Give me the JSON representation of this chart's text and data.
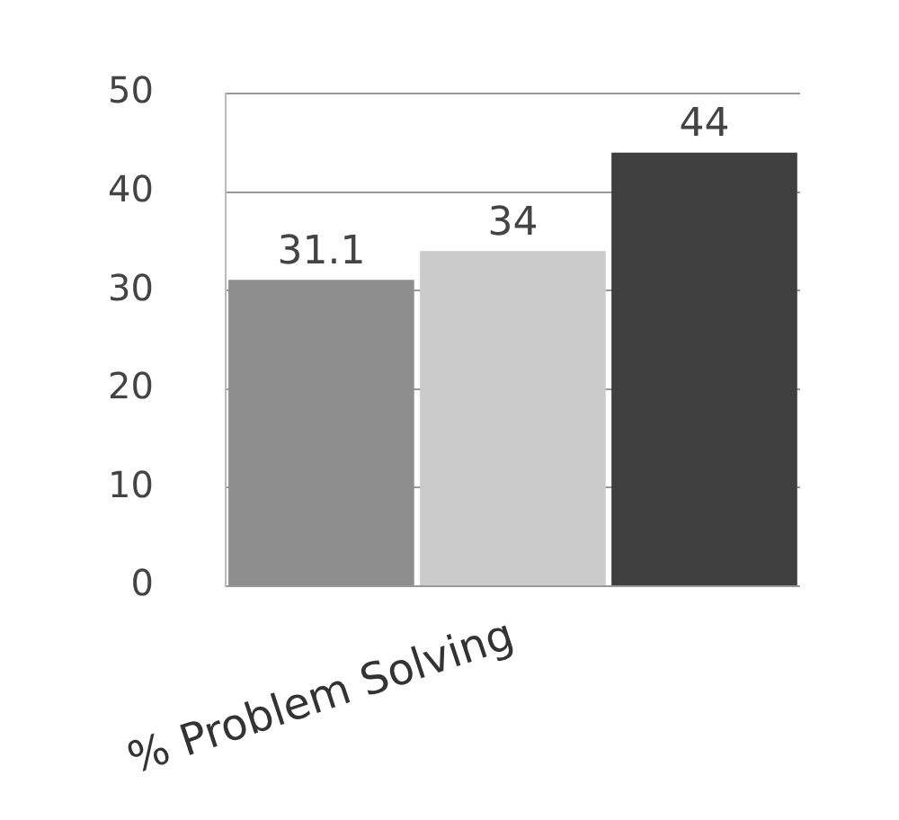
{
  "chart_data": {
    "type": "bar",
    "categories": [
      null,
      "% Problem Solving",
      null
    ],
    "values": [
      31.1,
      34,
      44
    ],
    "colors": [
      "#8e8e8e",
      "#cbcbcb",
      "#3f3f3f"
    ],
    "ylim": [
      0,
      50
    ],
    "yticks": [
      0,
      10,
      20,
      30,
      40,
      50
    ],
    "grid": "y",
    "legend": false,
    "data_labels": true
  }
}
